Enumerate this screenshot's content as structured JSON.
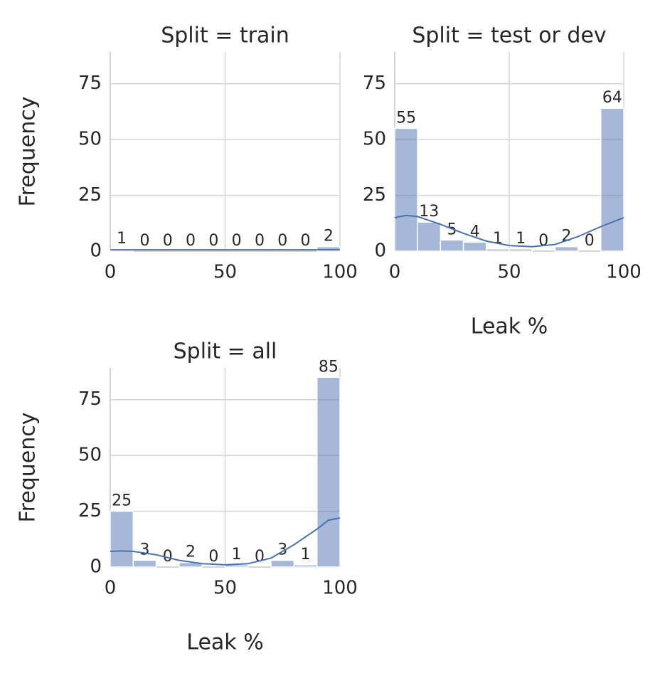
{
  "chart_data": [
    {
      "type": "histogram",
      "title": "Split = train",
      "ylabel": "Frequency",
      "bins": [
        0,
        10,
        20,
        30,
        40,
        50,
        60,
        70,
        80,
        90,
        100
      ],
      "values": [
        1,
        0,
        0,
        0,
        0,
        0,
        0,
        0,
        0,
        2
      ],
      "color": "#4c72b0",
      "kde_x": [
        0,
        100
      ],
      "kde_y": [
        0.6,
        0.6
      ],
      "xlim": [
        0,
        100
      ],
      "ylim": [
        0,
        89.25
      ],
      "xticks": [
        0,
        50,
        100
      ],
      "yticks": [
        0,
        25,
        50,
        75
      ],
      "grid": true
    },
    {
      "type": "histogram",
      "title": "Split = test or dev",
      "xlabel": "Leak %",
      "bins": [
        0,
        10,
        20,
        30,
        40,
        50,
        60,
        70,
        80,
        90,
        100
      ],
      "values": [
        55,
        13,
        5,
        4,
        1,
        1,
        0,
        2,
        0,
        64
      ],
      "color": "#4c72b0",
      "kde_x": [
        0,
        5,
        10,
        20,
        30,
        40,
        50,
        60,
        70,
        80,
        90,
        100
      ],
      "kde_y": [
        15,
        16,
        15.5,
        12,
        8,
        4.5,
        2.5,
        2,
        3,
        6.5,
        11,
        15
      ],
      "xlim": [
        0,
        100
      ],
      "ylim": [
        0,
        89.25
      ],
      "xticks": [
        0,
        50,
        100
      ],
      "yticks": [
        0,
        25,
        50,
        75
      ],
      "grid": true
    },
    {
      "type": "histogram",
      "title": "Split = all",
      "ylabel": "Frequency",
      "xlabel": "Leak %",
      "bins": [
        0,
        10,
        20,
        30,
        40,
        50,
        60,
        70,
        80,
        90,
        100
      ],
      "values": [
        25,
        3,
        0,
        2,
        0,
        1,
        0,
        3,
        1,
        85
      ],
      "color": "#4c72b0",
      "kde_x": [
        0,
        5,
        10,
        20,
        30,
        40,
        50,
        60,
        70,
        80,
        90,
        95,
        100
      ],
      "kde_y": [
        7,
        7.2,
        7,
        5.5,
        3,
        1.5,
        1,
        1.5,
        4,
        10,
        17,
        21,
        22
      ],
      "xlim": [
        0,
        100
      ],
      "ylim": [
        0,
        89.25
      ],
      "xticks": [
        0,
        50,
        100
      ],
      "yticks": [
        0,
        25,
        50,
        75
      ],
      "grid": true
    }
  ]
}
